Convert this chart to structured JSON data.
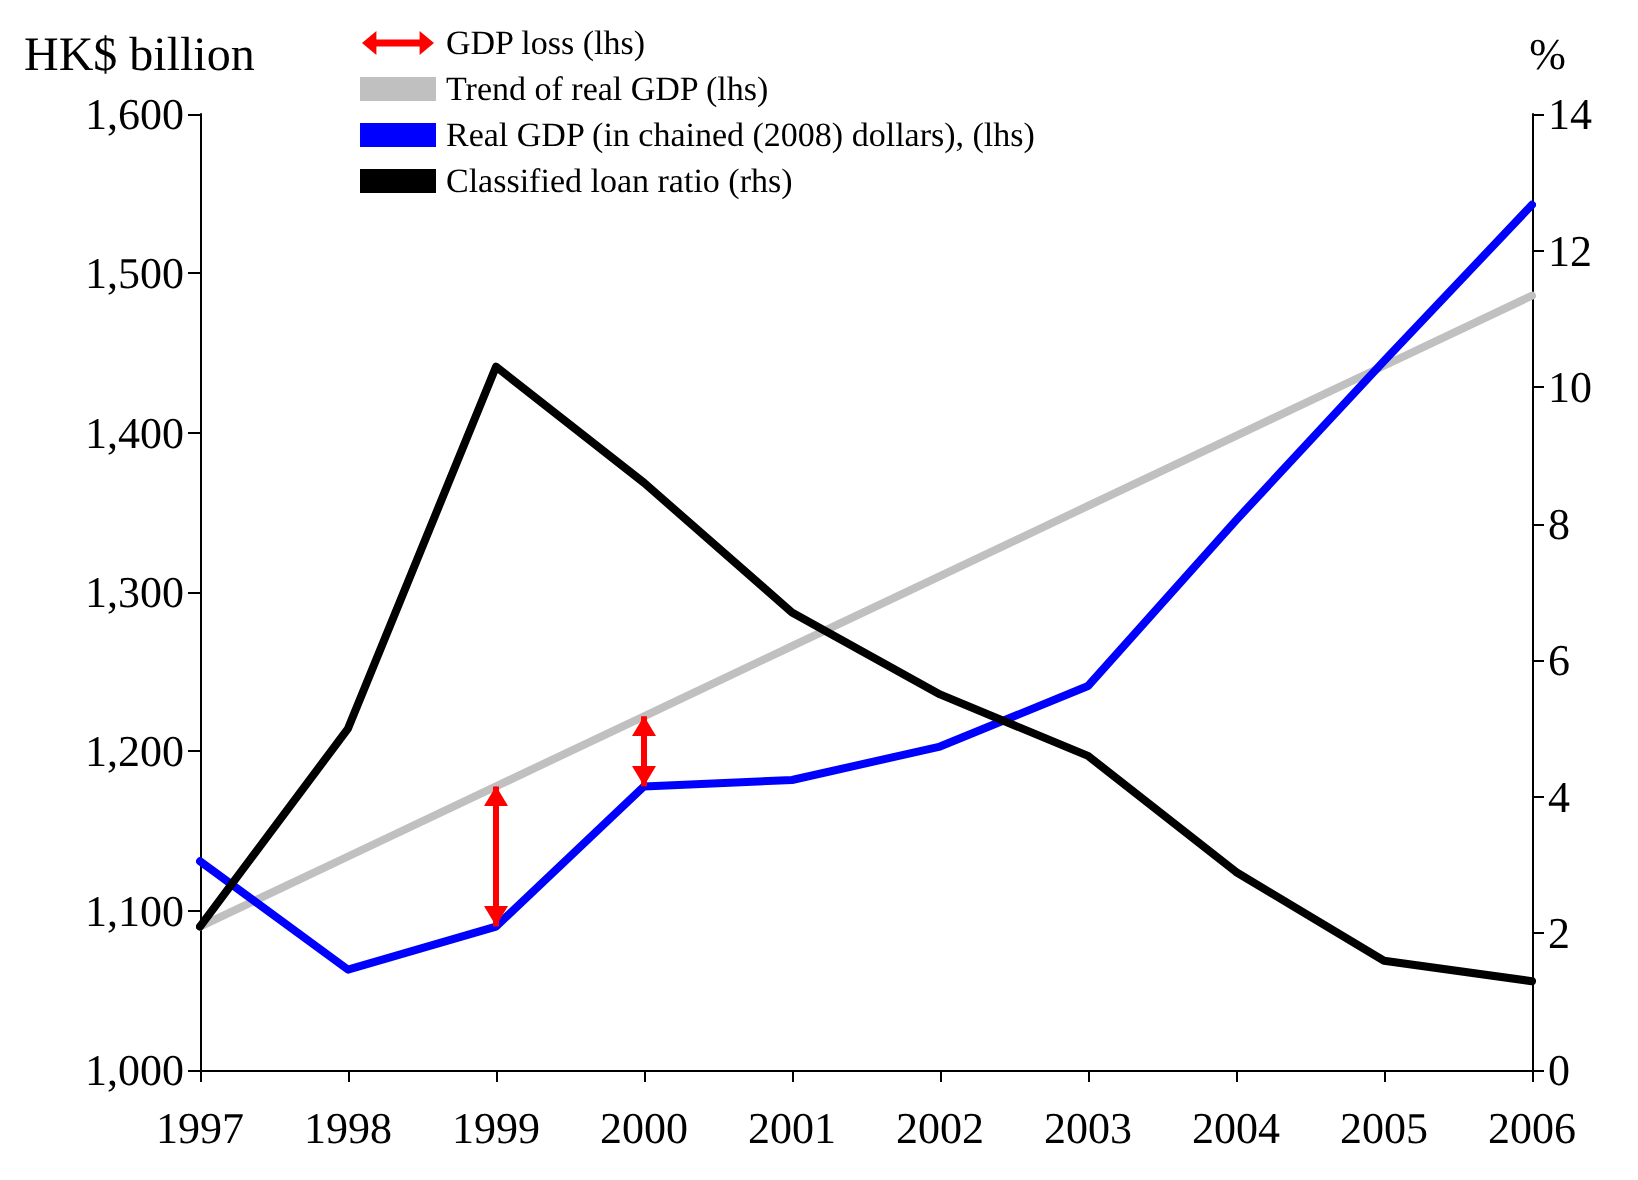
{
  "chart_data": {
    "type": "line",
    "ylabel": "HK$ billion",
    "y2label": "%",
    "categories": [
      "1997",
      "1998",
      "1999",
      "2000",
      "2001",
      "2002",
      "2003",
      "2004",
      "2005",
      "2006"
    ],
    "series": [
      {
        "name": "GDP loss (lhs)",
        "type": "bar",
        "color": "#ff0000",
        "base": [
          null,
          null,
          1090,
          1178,
          null,
          null,
          null,
          null,
          null,
          null
        ],
        "values": [
          null,
          null,
          88,
          44,
          null,
          null,
          null,
          null,
          null,
          null
        ]
      },
      {
        "name": "Trend of real GDP (lhs)",
        "color": "#c0c0c0",
        "values": [
          1090,
          1134,
          1178,
          1222,
          1266,
          1310,
          1354,
          1398,
          1442,
          1486
        ]
      },
      {
        "name": "Real GDP (in chained (2008) dollars), (lhs)",
        "color": "#0000ff",
        "values": [
          1131,
          1063,
          1090,
          1178,
          1182,
          1203,
          1241,
          1345,
          1445,
          1543
        ]
      },
      {
        "name": "Classified loan ratio (rhs)",
        "color": "#000000",
        "axis": "y2",
        "values": [
          2.1,
          5.0,
          10.3,
          8.6,
          6.7,
          5.5,
          4.6,
          2.9,
          1.6,
          1.3
        ]
      }
    ],
    "ylim": [
      1000,
      1600
    ],
    "yticks": [
      {
        "value": 1000,
        "label": "1,000"
      },
      {
        "value": 1100,
        "label": "1,100"
      },
      {
        "value": 1200,
        "label": "1,200"
      },
      {
        "value": 1300,
        "label": "1,300"
      },
      {
        "value": 1400,
        "label": "1,400"
      },
      {
        "value": 1500,
        "label": "1,500"
      },
      {
        "value": 1600,
        "label": "1,600"
      }
    ],
    "y2lim": [
      0,
      14
    ],
    "y2ticks": [
      0,
      2,
      4,
      6,
      8,
      10,
      12,
      14
    ],
    "grid": false,
    "legend": "top left",
    "marker": "none",
    "line_style": "solid"
  }
}
